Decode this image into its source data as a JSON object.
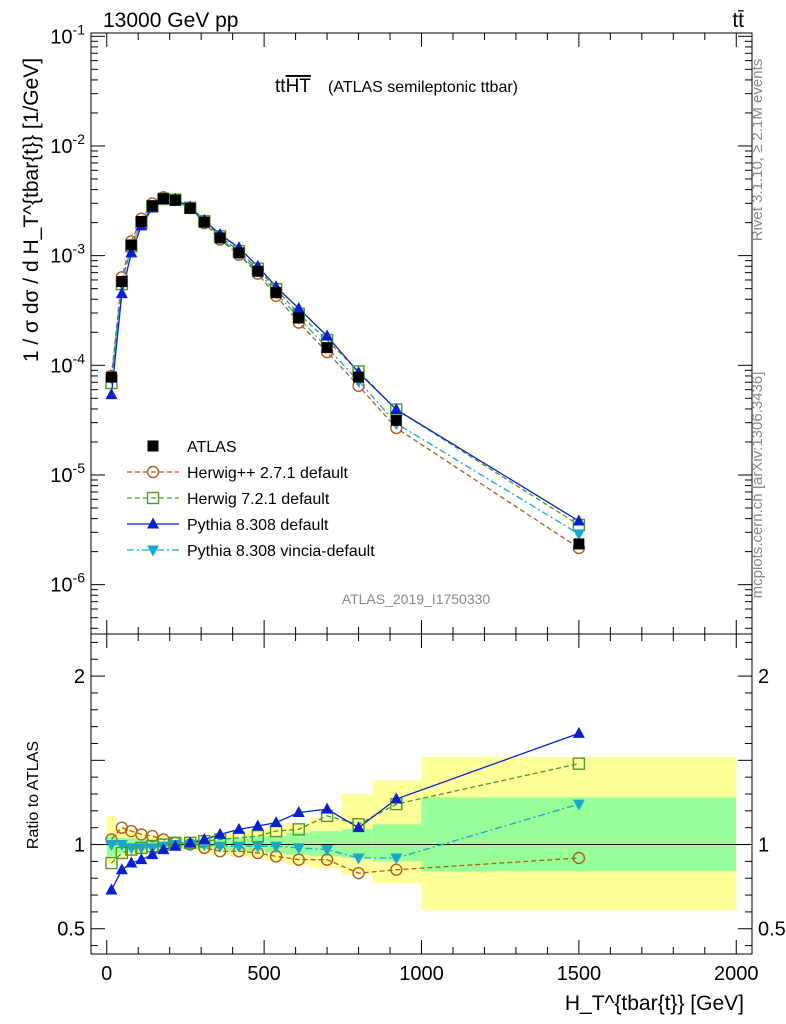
{
  "header": {
    "left": "13000 GeV pp",
    "right": "tt̄"
  },
  "title_main": "tt",
  "title_overline": "HT",
  "title_rest": "(ATLAS semileptonic ttbar)",
  "side_text": {
    "rivet": "Rivet 3.1.10, ≥ 2.1M events",
    "mcplots": "mcplots.cern.ch [arXiv:1306.3436]"
  },
  "analysis_id": "ATLAS_2019_I1750330",
  "ylabel_main": "1 / σ dσ / d H_T^{tbar{t}} [1/GeV]",
  "ylabel_ratio": "Ratio to ATLAS",
  "xlabel": "H_T^{tbar{t}} [GeV]",
  "chart_data": {
    "type": "scatter",
    "x": [
      15,
      48,
      78,
      110,
      145,
      180,
      218,
      265,
      310,
      360,
      420,
      480,
      538,
      610,
      700,
      800,
      920,
      1500
    ],
    "xlim": [
      -50,
      2050
    ],
    "x_ticks": [
      0,
      500,
      1000,
      1500,
      2000
    ],
    "x_tick_labels": [
      "0",
      "500",
      "1000",
      "1500",
      "2000"
    ],
    "main_ylim_log10": [
      -6.45,
      -0.97
    ],
    "main_y_tick_labels": [
      "10^-6",
      "10^-5",
      "10^-4",
      "10^-3",
      "10^-2",
      "10^-1"
    ],
    "ratio_ylim": [
      0.35,
      2.25
    ],
    "ratio_y_ticks": [
      0.5,
      1,
      2
    ],
    "ratio_y_tick_labels": [
      "0.5",
      "1",
      "2"
    ],
    "band_edges": [
      0,
      30,
      60,
      95,
      125,
      160,
      200,
      235,
      285,
      335,
      385,
      445,
      505,
      570,
      645,
      745,
      845,
      1000,
      2000
    ],
    "band_inner": [
      [
        0.93,
        1.06
      ],
      [
        0.95,
        1.04
      ],
      [
        0.96,
        1.04
      ],
      [
        0.97,
        1.03
      ],
      [
        0.97,
        1.03
      ],
      [
        0.98,
        1.02
      ],
      [
        0.98,
        1.02
      ],
      [
        0.98,
        1.02
      ],
      [
        0.97,
        1.03
      ],
      [
        0.97,
        1.03
      ],
      [
        0.96,
        1.04
      ],
      [
        0.96,
        1.05
      ],
      [
        0.95,
        1.05
      ],
      [
        0.94,
        1.07
      ],
      [
        0.93,
        1.08
      ],
      [
        0.92,
        1.09
      ],
      [
        0.9,
        1.12
      ],
      [
        0.84,
        1.28
      ]
    ],
    "band_outer": [
      [
        0.88,
        1.17
      ],
      [
        0.91,
        1.1
      ],
      [
        0.93,
        1.09
      ],
      [
        0.94,
        1.07
      ],
      [
        0.95,
        1.06
      ],
      [
        0.96,
        1.05
      ],
      [
        0.97,
        1.04
      ],
      [
        0.97,
        1.04
      ],
      [
        0.95,
        1.05
      ],
      [
        0.95,
        1.06
      ],
      [
        0.93,
        1.07
      ],
      [
        0.92,
        1.09
      ],
      [
        0.9,
        1.1
      ],
      [
        0.88,
        1.13
      ],
      [
        0.86,
        1.16
      ],
      [
        0.82,
        1.3
      ],
      [
        0.77,
        1.38
      ],
      [
        0.61,
        1.52
      ]
    ],
    "series": [
      {
        "name": "ATLAS",
        "color": "#000000",
        "marker": "square-filled",
        "line": "none",
        "values": [
          7.8e-05,
          0.00058,
          0.00125,
          0.00205,
          0.00285,
          0.0033,
          0.0032,
          0.0027,
          0.00202,
          0.00145,
          0.00106,
          0.00072,
          0.00046,
          0.00027,
          0.000145,
          7.8e-05,
          3.15e-05,
          2.35e-06
        ],
        "ratio": [
          1,
          1,
          1,
          1,
          1,
          1,
          1,
          1,
          1,
          1,
          1,
          1,
          1,
          1,
          1,
          1,
          1,
          1
        ]
      },
      {
        "name": "Herwig++ 2.7.1 default",
        "color": "#b35c1e",
        "marker": "circle-open",
        "line": "dashed",
        "values": [
          8e-05,
          0.000635,
          0.00135,
          0.00217,
          0.00299,
          0.0034,
          0.00325,
          0.00272,
          0.00198,
          0.0014,
          0.00102,
          0.000685,
          0.00043,
          0.000245,
          0.000132,
          6.5e-05,
          2.68e-05,
          2.16e-06
        ],
        "ratio": [
          1.03,
          1.1,
          1.08,
          1.06,
          1.05,
          1.03,
          1.01,
          1.0,
          0.98,
          0.96,
          0.96,
          0.95,
          0.93,
          0.91,
          0.91,
          0.83,
          0.85,
          0.92
        ]
      },
      {
        "name": "Herwig 7.2.1 default",
        "color": "#4d9a2a",
        "marker": "square-open",
        "line": "dashed",
        "values": [
          6.9e-05,
          0.00055,
          0.00122,
          0.002,
          0.00282,
          0.0033,
          0.00323,
          0.00273,
          0.00206,
          0.0015,
          0.0011,
          0.00076,
          0.000495,
          0.000295,
          0.00017,
          8.8e-05,
          3.95e-05,
          3.5e-06
        ],
        "ratio": [
          0.89,
          0.95,
          0.97,
          0.98,
          0.99,
          1.0,
          1.01,
          1.01,
          1.02,
          1.03,
          1.04,
          1.05,
          1.08,
          1.09,
          1.17,
          1.12,
          1.24,
          1.48
        ]
      },
      {
        "name": "Pythia 8.308 default",
        "color": "#0a1fd1",
        "marker": "triangle-up",
        "line": "solid",
        "values": [
          5.4e-05,
          0.00045,
          0.00106,
          0.00187,
          0.00272,
          0.00325,
          0.00325,
          0.00278,
          0.0021,
          0.00156,
          0.00118,
          0.0008,
          0.00052,
          0.00033,
          0.000185,
          8.6e-05,
          3.95e-05,
          3.8e-06
        ],
        "ratio": [
          0.73,
          0.85,
          0.89,
          0.91,
          0.94,
          0.97,
          0.99,
          1.01,
          1.03,
          1.06,
          1.09,
          1.11,
          1.13,
          1.19,
          1.21,
          1.1,
          1.27,
          1.66
        ]
      },
      {
        "name": "Pythia 8.308 vincia-default",
        "color": "#18a8cc",
        "marker": "triangle-down",
        "line": "dashdot",
        "values": [
          7.6e-05,
          0.00057,
          0.00121,
          0.002,
          0.0028,
          0.00327,
          0.0032,
          0.00269,
          0.00202,
          0.00144,
          0.00105,
          0.00072,
          0.00046,
          0.00027,
          0.000145,
          7.2e-05,
          2.95e-05,
          2.9e-06
        ],
        "ratio": [
          1.0,
          1.0,
          0.98,
          0.98,
          0.98,
          0.99,
          1.0,
          1.0,
          1.0,
          0.99,
          0.99,
          0.99,
          0.99,
          0.98,
          0.97,
          0.92,
          0.92,
          1.24
        ]
      }
    ]
  }
}
